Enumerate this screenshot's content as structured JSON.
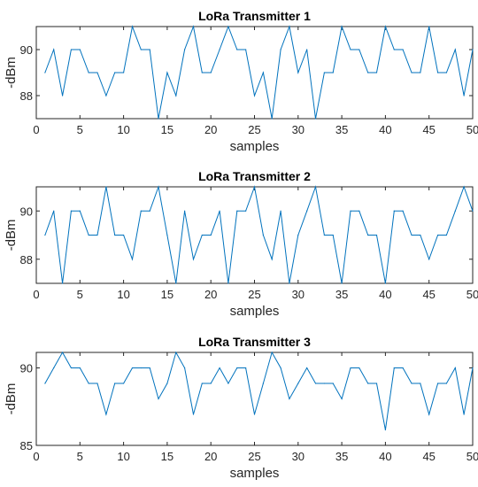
{
  "chart_data": [
    {
      "type": "line",
      "title": "LoRa Transmitter 1",
      "xlabel": "samples",
      "ylabel": "-dBm",
      "xlim": [
        0,
        50
      ],
      "ylim": [
        87,
        91
      ],
      "xticks": [
        0,
        5,
        10,
        15,
        20,
        25,
        30,
        35,
        40,
        45,
        50
      ],
      "yticks": [
        88,
        90
      ],
      "grid": false,
      "color": "#0072BD",
      "x": [
        1,
        2,
        3,
        4,
        5,
        6,
        7,
        8,
        9,
        10,
        11,
        12,
        13,
        14,
        15,
        16,
        17,
        18,
        19,
        20,
        21,
        22,
        23,
        24,
        25,
        26,
        27,
        28,
        29,
        30,
        31,
        32,
        33,
        34,
        35,
        36,
        37,
        38,
        39,
        40,
        41,
        42,
        43,
        44,
        45,
        46,
        47,
        48,
        49,
        50
      ],
      "values": [
        89,
        90,
        88,
        90,
        90,
        89,
        89,
        88,
        89,
        89,
        91,
        90,
        90,
        87,
        89,
        88,
        90,
        91,
        89,
        89,
        90,
        91,
        90,
        90,
        88,
        89,
        87,
        90,
        91,
        89,
        90,
        87,
        89,
        89,
        91,
        90,
        90,
        89,
        89,
        91,
        90,
        90,
        89,
        89,
        91,
        89,
        89,
        90,
        88,
        90
      ]
    },
    {
      "type": "line",
      "title": "LoRa Transmitter 2",
      "xlabel": "samples",
      "ylabel": "-dBm",
      "xlim": [
        0,
        50
      ],
      "ylim": [
        87,
        91
      ],
      "xticks": [
        0,
        5,
        10,
        15,
        20,
        25,
        30,
        35,
        40,
        45,
        50
      ],
      "yticks": [
        88,
        90
      ],
      "grid": false,
      "color": "#0072BD",
      "x": [
        1,
        2,
        3,
        4,
        5,
        6,
        7,
        8,
        9,
        10,
        11,
        12,
        13,
        14,
        15,
        16,
        17,
        18,
        19,
        20,
        21,
        22,
        23,
        24,
        25,
        26,
        27,
        28,
        29,
        30,
        31,
        32,
        33,
        34,
        35,
        36,
        37,
        38,
        39,
        40,
        41,
        42,
        43,
        44,
        45,
        46,
        47,
        48,
        49,
        50
      ],
      "values": [
        89,
        90,
        87,
        90,
        90,
        89,
        89,
        91,
        89,
        89,
        88,
        90,
        90,
        91,
        89,
        87,
        90,
        88,
        89,
        89,
        90,
        87,
        90,
        90,
        91,
        89,
        88,
        90,
        87,
        89,
        90,
        91,
        89,
        89,
        87,
        90,
        90,
        89,
        89,
        87,
        90,
        90,
        89,
        89,
        88,
        89,
        89,
        90,
        91,
        90
      ]
    },
    {
      "type": "line",
      "title": "LoRa Transmitter 3",
      "xlabel": "samples",
      "ylabel": "-dBm",
      "xlim": [
        0,
        50
      ],
      "ylim": [
        85,
        91
      ],
      "xticks": [
        0,
        5,
        10,
        15,
        20,
        25,
        30,
        35,
        40,
        45,
        50
      ],
      "yticks": [
        85,
        90
      ],
      "grid": false,
      "color": "#0072BD",
      "x": [
        1,
        2,
        3,
        4,
        5,
        6,
        7,
        8,
        9,
        10,
        11,
        12,
        13,
        14,
        15,
        16,
        17,
        18,
        19,
        20,
        21,
        22,
        23,
        24,
        25,
        26,
        27,
        28,
        29,
        30,
        31,
        32,
        33,
        34,
        35,
        36,
        37,
        38,
        39,
        40,
        41,
        42,
        43,
        44,
        45,
        46,
        47,
        48,
        49,
        50
      ],
      "values": [
        89,
        90,
        91,
        90,
        90,
        89,
        89,
        87,
        89,
        89,
        90,
        90,
        90,
        88,
        89,
        91,
        90,
        87,
        89,
        89,
        90,
        89,
        90,
        90,
        87,
        89,
        91,
        90,
        88,
        89,
        90,
        89,
        89,
        89,
        88,
        90,
        90,
        89,
        89,
        86,
        90,
        90,
        89,
        89,
        87,
        89,
        89,
        90,
        87,
        90
      ]
    }
  ]
}
